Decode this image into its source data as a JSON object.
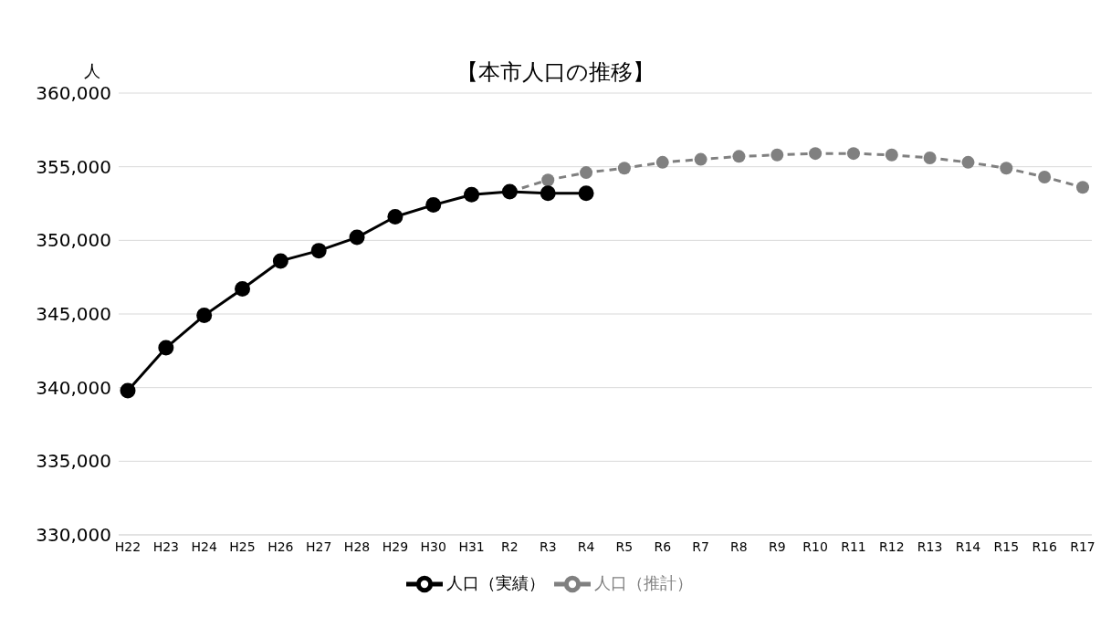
{
  "chart_data": {
    "type": "line",
    "title": "【本市人口の推移】",
    "ylabel": "人",
    "categories": [
      "H22",
      "H23",
      "H24",
      "H25",
      "H26",
      "H27",
      "H28",
      "H29",
      "H30",
      "H31",
      "R2",
      "R3",
      "R4",
      "R5",
      "R6",
      "R7",
      "R8",
      "R9",
      "R10",
      "R11",
      "R12",
      "R13",
      "R14",
      "R15",
      "R16",
      "R17"
    ],
    "series": [
      {
        "name": "人口（実績）",
        "color": "#000000",
        "line_style": "solid",
        "values": [
          339800,
          342700,
          344900,
          346700,
          348600,
          349300,
          350200,
          351600,
          352400,
          353100,
          353300,
          353200,
          353200,
          null,
          null,
          null,
          null,
          null,
          null,
          null,
          null,
          null,
          null,
          null,
          null,
          null
        ]
      },
      {
        "name": "人口（推計）",
        "color": "#808080",
        "line_style": "dashed",
        "values": [
          null,
          null,
          null,
          null,
          null,
          null,
          null,
          null,
          null,
          null,
          353300,
          354100,
          354600,
          354900,
          355300,
          355500,
          355700,
          355800,
          355900,
          355900,
          355800,
          355600,
          355300,
          354900,
          354300,
          353600
        ]
      }
    ],
    "ylim": [
      330000,
      360000
    ],
    "yticks": [
      {
        "value": 330000,
        "label": "330,000"
      },
      {
        "value": 335000,
        "label": "335,000"
      },
      {
        "value": 340000,
        "label": "340,000"
      },
      {
        "value": 345000,
        "label": "345,000"
      },
      {
        "value": 350000,
        "label": "350,000"
      },
      {
        "value": 355000,
        "label": "355,000"
      },
      {
        "value": 360000,
        "label": "360,000"
      }
    ],
    "grid": "y",
    "legend": "bottom",
    "marker": "circle"
  }
}
